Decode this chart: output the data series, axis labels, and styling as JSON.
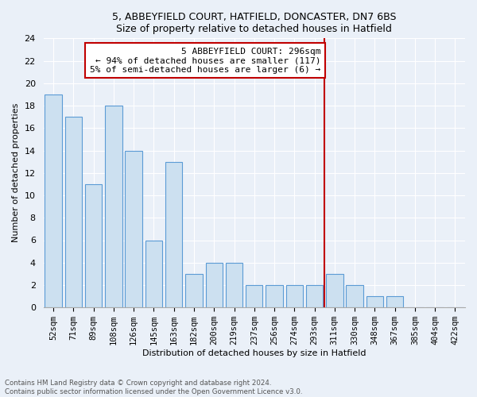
{
  "title1": "5, ABBEYFIELD COURT, HATFIELD, DONCASTER, DN7 6BS",
  "title2": "Size of property relative to detached houses in Hatfield",
  "xlabel": "Distribution of detached houses by size in Hatfield",
  "ylabel": "Number of detached properties",
  "footnote1": "Contains HM Land Registry data © Crown copyright and database right 2024.",
  "footnote2": "Contains public sector information licensed under the Open Government Licence v3.0.",
  "categories": [
    "52sqm",
    "71sqm",
    "89sqm",
    "108sqm",
    "126sqm",
    "145sqm",
    "163sqm",
    "182sqm",
    "200sqm",
    "219sqm",
    "237sqm",
    "256sqm",
    "274sqm",
    "293sqm",
    "311sqm",
    "330sqm",
    "348sqm",
    "367sqm",
    "385sqm",
    "404sqm",
    "422sqm"
  ],
  "values": [
    19,
    17,
    11,
    18,
    14,
    6,
    13,
    3,
    4,
    4,
    2,
    2,
    2,
    2,
    3,
    2,
    1,
    1,
    0,
    0,
    0
  ],
  "bar_color": "#cce0f0",
  "bar_edge_color": "#5b9bd5",
  "subject_line_color": "#c00000",
  "subject_line_index": 13,
  "annotation_title": "5 ABBEYFIELD COURT: 296sqm",
  "annotation_line1": "← 94% of detached houses are smaller (117)",
  "annotation_line2": "5% of semi-detached houses are larger (6) →",
  "annotation_box_edge": "#c00000",
  "annotation_box_face": "#ffffff",
  "ylim": [
    0,
    24
  ],
  "yticks": [
    0,
    2,
    4,
    6,
    8,
    10,
    12,
    14,
    16,
    18,
    20,
    22,
    24
  ],
  "bg_color": "#eaf0f8",
  "grid_color": "#ffffff",
  "title_fontsize": 9,
  "axis_fontsize": 8,
  "tick_fontsize": 8,
  "xtick_fontsize": 7.5
}
